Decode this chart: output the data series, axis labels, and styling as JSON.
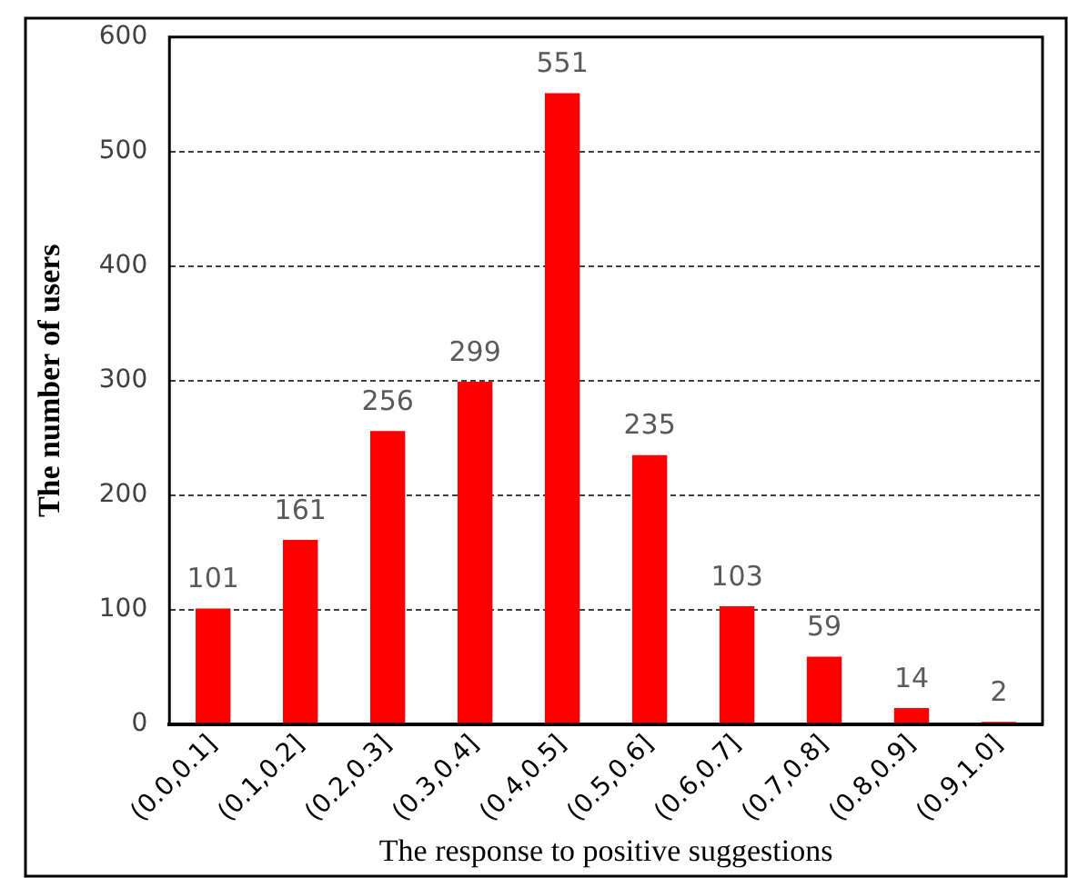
{
  "chart_data": {
    "type": "bar",
    "xlabel": "The response to positive suggestions",
    "ylabel": "The number of users",
    "categories": [
      "(0.0,0.1]",
      "(0.1,0.2]",
      "(0.2,0.3]",
      "(0.3,0.4]",
      "(0.4,0.5]",
      "(0.5,0.6]",
      "(0.6,0.7]",
      "(0.7,0.8]",
      "(0.8,0.9]",
      "(0.9,1.0]"
    ],
    "values": [
      101,
      161,
      256,
      299,
      551,
      235,
      103,
      59,
      14,
      2
    ],
    "color": "#ff0000",
    "ylim": [
      0,
      600
    ],
    "yticks": [
      0,
      100,
      200,
      300,
      400,
      500,
      600
    ],
    "grid": "y",
    "line_style": "dashed",
    "data_labels": true,
    "legend": false
  }
}
